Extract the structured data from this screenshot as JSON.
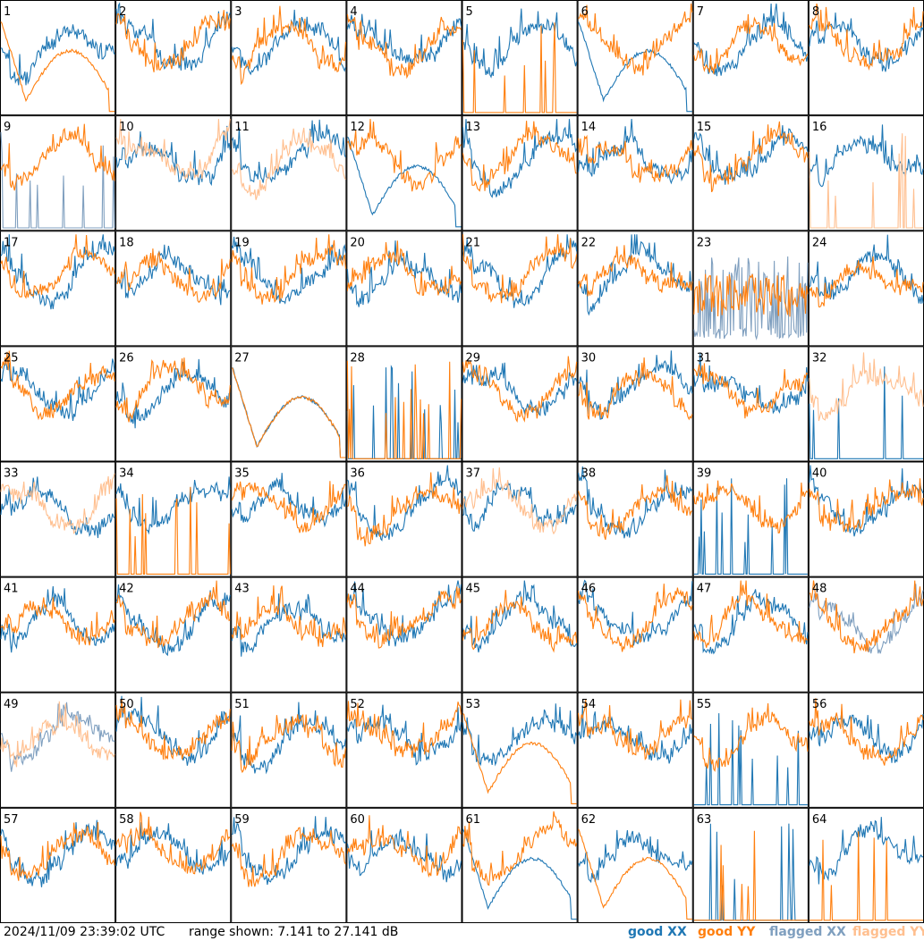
{
  "chart_data": {
    "type": "line",
    "title": "",
    "xlabel": "",
    "ylabel": "",
    "ylim": [
      7.141,
      27.141
    ],
    "grid_layout": "8x8",
    "panel_count": 64,
    "panel_labels": [
      "1",
      "2",
      "3",
      "4",
      "5",
      "6",
      "7",
      "8",
      "9",
      "10",
      "11",
      "12",
      "13",
      "14",
      "15",
      "16",
      "17",
      "18",
      "19",
      "20",
      "21",
      "22",
      "23",
      "24",
      "25",
      "26",
      "27",
      "28",
      "29",
      "30",
      "31",
      "32",
      "33",
      "34",
      "35",
      "36",
      "37",
      "38",
      "39",
      "40",
      "41",
      "42",
      "43",
      "44",
      "45",
      "46",
      "47",
      "48",
      "49",
      "50",
      "51",
      "52",
      "53",
      "54",
      "55",
      "56",
      "57",
      "58",
      "59",
      "60",
      "61",
      "62",
      "63",
      "64"
    ],
    "series": [
      {
        "name": "good XX",
        "color": "#1f77b4"
      },
      {
        "name": "good YY",
        "color": "#ff7f0e"
      },
      {
        "name": "flagged XX",
        "color": "#7f9fbf"
      },
      {
        "name": "flagged YY",
        "color": "#ffbf8f"
      }
    ],
    "flagged_xx_panels": [
      9,
      23,
      48,
      49
    ],
    "flagged_yy_panels": [
      10,
      11,
      16,
      32,
      33,
      37,
      49
    ],
    "panel_shapes": {
      "1": {
        "xx": "normal",
        "yy": "dip-hump"
      },
      "5": {
        "xx": "normal",
        "yy": "spikes"
      },
      "6": {
        "xx": "dip-hump",
        "yy": "normal"
      },
      "9": {
        "xx": "spikes",
        "yy": "normal"
      },
      "12": {
        "xx": "dip-hump",
        "yy": "normal"
      },
      "16": {
        "xx": "normal",
        "yy": "spikes"
      },
      "23": {
        "xx": "dropout",
        "yy": "noisy"
      },
      "27": {
        "xx": "dip-hump",
        "yy": "dip-hump"
      },
      "28": {
        "xx": "spikes",
        "yy": "spikes"
      },
      "32": {
        "xx": "spikes",
        "yy": "normal"
      },
      "34": {
        "xx": "normal",
        "yy": "spikes"
      },
      "39": {
        "xx": "spikes",
        "yy": "normal"
      },
      "53": {
        "xx": "normal",
        "yy": "dip-hump"
      },
      "55": {
        "xx": "spikes",
        "yy": "normal"
      },
      "61": {
        "xx": "dip-hump",
        "yy": "normal"
      },
      "62": {
        "xx": "normal",
        "yy": "dip-hump"
      },
      "63": {
        "xx": "spikes",
        "yy": "spikes"
      },
      "64": {
        "xx": "normal",
        "yy": "spikes"
      }
    }
  },
  "footer": {
    "timestamp": "2024/11/09 23:39:02 UTC",
    "range": "range shown: 7.141 to 27.141 dB"
  },
  "legend": {
    "good_xx": "good XX",
    "good_yy": "good YY",
    "flagged_xx": "flagged XX",
    "flagged_yy": "flagged YY"
  }
}
